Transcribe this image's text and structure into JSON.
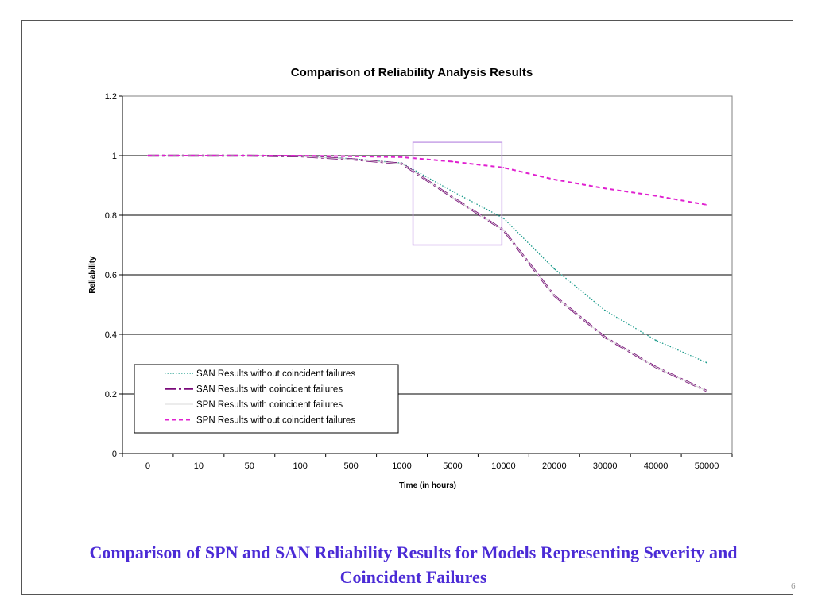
{
  "slide": {
    "caption": "Comparison of SPN and SAN Reliability Results for Models Representing Severity and Coincident Failures",
    "slide_number": "6"
  },
  "colors": {
    "caption": "#4b2bd6",
    "highlight_box": "#c8a2e8",
    "gridline": "#000000"
  },
  "chart_data": {
    "type": "line",
    "title": "Comparison of Reliability Analysis Results",
    "xlabel": "Time (in hours)",
    "ylabel": "Reliability",
    "categories": [
      "0",
      "10",
      "50",
      "100",
      "500",
      "1000",
      "5000",
      "10000",
      "20000",
      "30000",
      "40000",
      "50000"
    ],
    "ylim": [
      0,
      1.2
    ],
    "yticks": [
      "0",
      "0.2",
      "0.4",
      "0.6",
      "0.8",
      "1",
      "1.2"
    ],
    "grid": "horizontal",
    "legend_position": "bottom-left",
    "series": [
      {
        "name": "SAN Results without coincident failures",
        "color": "#1a9a8a",
        "dash": "dotted",
        "values": [
          1.0,
          1.0,
          1.0,
          0.998,
          0.99,
          0.975,
          0.88,
          0.79,
          0.62,
          0.48,
          0.38,
          0.305
        ]
      },
      {
        "name": "SAN Results with coincident failures",
        "color": "#7a0a7a",
        "dash": "dashdot",
        "values": [
          1.0,
          1.0,
          1.0,
          0.998,
          0.988,
          0.973,
          0.86,
          0.75,
          0.53,
          0.39,
          0.29,
          0.21
        ]
      },
      {
        "name": "SPN Results with coincident failures",
        "color": "#d8d8d8",
        "dash": "solid",
        "values": [
          1.0,
          1.0,
          1.0,
          0.998,
          0.988,
          0.973,
          0.86,
          0.75,
          0.53,
          0.39,
          0.29,
          0.21
        ]
      },
      {
        "name": "SPN Results without coincident failures",
        "color": "#e020d0",
        "dash": "dashed",
        "values": [
          1.0,
          1.0,
          1.0,
          1.0,
          0.998,
          0.995,
          0.98,
          0.96,
          0.92,
          0.89,
          0.865,
          0.835
        ]
      }
    ],
    "highlight_box": {
      "x_from": "1000",
      "x_to": "10000",
      "y_range": [
        0.7,
        1.045
      ]
    }
  }
}
